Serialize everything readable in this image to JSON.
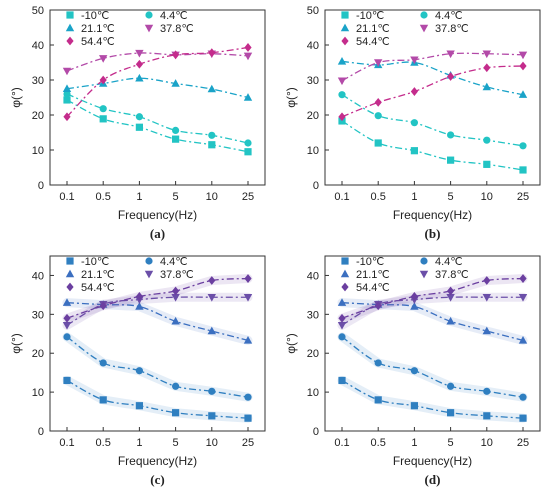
{
  "chart_data": [
    {
      "type": "line",
      "caption": "(a)",
      "xlabel": "Frequency(Hz)",
      "ylabel": "φ(°)",
      "categories": [
        "0.1",
        "0.5",
        "1",
        "5",
        "10",
        "25"
      ],
      "ylim": [
        0,
        50
      ],
      "yticks": [
        0,
        10,
        20,
        30,
        40,
        50
      ],
      "legend_position": "top",
      "series": [
        {
          "name": "-10℃",
          "color": "#22c4c4",
          "marker": "square",
          "values": [
            24.3,
            18.9,
            16.5,
            13.1,
            11.5,
            9.5
          ]
        },
        {
          "name": "4.4℃",
          "color": "#22c4c4",
          "marker": "circle",
          "values": [
            26.0,
            21.8,
            19.5,
            15.6,
            14.2,
            12.0
          ]
        },
        {
          "name": "21.1℃",
          "color": "#1aa3c8",
          "marker": "triangle-up",
          "values": [
            27.5,
            29.0,
            30.5,
            29.0,
            27.4,
            25.0
          ]
        },
        {
          "name": "37.8℃",
          "color": "#b34aa8",
          "marker": "triangle-down",
          "values": [
            32.6,
            36.2,
            37.7,
            37.2,
            37.5,
            36.9
          ]
        },
        {
          "name": "54.4℃",
          "color": "#c42c8c",
          "marker": "diamond",
          "values": [
            19.5,
            30.0,
            34.5,
            37.2,
            37.8,
            39.3
          ]
        }
      ]
    },
    {
      "type": "line",
      "caption": "(b)",
      "xlabel": "Frequency(Hz)",
      "ylabel": "φ(°)",
      "categories": [
        "0.1",
        "0.5",
        "1",
        "5",
        "10",
        "25"
      ],
      "ylim": [
        0,
        50
      ],
      "yticks": [
        0,
        10,
        20,
        30,
        40,
        50
      ],
      "legend_position": "top",
      "series": [
        {
          "name": "-10℃",
          "color": "#22c4c4",
          "marker": "square",
          "values": [
            18.3,
            12.0,
            9.8,
            7.1,
            5.9,
            4.3
          ]
        },
        {
          "name": "4.4℃",
          "color": "#22c4c4",
          "marker": "circle",
          "values": [
            25.8,
            19.8,
            17.8,
            14.3,
            12.8,
            11.2
          ]
        },
        {
          "name": "21.1℃",
          "color": "#1aa3c8",
          "marker": "triangle-up",
          "values": [
            35.3,
            34.3,
            35.0,
            31.3,
            28.0,
            25.8
          ]
        },
        {
          "name": "37.8℃",
          "color": "#b34aa8",
          "marker": "triangle-down",
          "values": [
            29.8,
            35.0,
            35.8,
            37.5,
            37.5,
            37.2
          ]
        },
        {
          "name": "54.4℃",
          "color": "#c42c8c",
          "marker": "diamond",
          "values": [
            19.5,
            23.6,
            26.7,
            31.0,
            33.5,
            34.0
          ]
        }
      ]
    },
    {
      "type": "line",
      "caption": "(c)",
      "xlabel": "Frequency(Hz)",
      "ylabel": "φ(°)",
      "categories": [
        "0.1",
        "0.5",
        "1",
        "5",
        "10",
        "25"
      ],
      "ylim": [
        0,
        45
      ],
      "yticks": [
        0,
        10,
        20,
        30,
        40
      ],
      "legend_position": "top",
      "series": [
        {
          "name": "-10℃",
          "color": "#2f7fc0",
          "marker": "square",
          "values": [
            13.0,
            8.0,
            6.5,
            4.7,
            3.9,
            3.3
          ]
        },
        {
          "name": "4.4℃",
          "color": "#2f7fc0",
          "marker": "circle",
          "values": [
            24.2,
            17.5,
            15.5,
            11.5,
            10.2,
            8.7
          ]
        },
        {
          "name": "21.1℃",
          "color": "#3b6fc0",
          "marker": "triangle-up",
          "values": [
            33.0,
            32.5,
            32.0,
            28.2,
            25.7,
            23.3
          ]
        },
        {
          "name": "37.8℃",
          "color": "#6b4fa8",
          "marker": "triangle-down",
          "values": [
            27.2,
            32.6,
            33.8,
            34.4,
            34.4,
            34.4
          ]
        },
        {
          "name": "54.4℃",
          "color": "#6b3fa0",
          "marker": "diamond",
          "values": [
            29.0,
            32.2,
            34.6,
            36.0,
            38.7,
            39.2
          ]
        }
      ]
    },
    {
      "type": "line",
      "caption": "(d)",
      "xlabel": "Frequency(Hz)",
      "ylabel": "φ(°)",
      "categories": [
        "0.1",
        "0.5",
        "1",
        "5",
        "10",
        "25"
      ],
      "ylim": [
        0,
        45
      ],
      "yticks": [
        0,
        10,
        20,
        30,
        40
      ],
      "legend_position": "top",
      "series": [
        {
          "name": "-10℃",
          "color": "#2f7fc0",
          "marker": "square",
          "values": [
            13.0,
            8.0,
            6.5,
            4.7,
            3.9,
            3.3
          ]
        },
        {
          "name": "4.4℃",
          "color": "#2f7fc0",
          "marker": "circle",
          "values": [
            24.2,
            17.5,
            15.5,
            11.5,
            10.2,
            8.7
          ]
        },
        {
          "name": "21.1℃",
          "color": "#3b6fc0",
          "marker": "triangle-up",
          "values": [
            33.0,
            32.5,
            32.0,
            28.2,
            25.7,
            23.3
          ]
        },
        {
          "name": "37.8℃",
          "color": "#6b4fa8",
          "marker": "triangle-down",
          "values": [
            27.2,
            32.6,
            33.8,
            34.4,
            34.4,
            34.4
          ]
        },
        {
          "name": "54.4℃",
          "color": "#6b3fa0",
          "marker": "diamond",
          "values": [
            29.0,
            32.2,
            34.6,
            36.0,
            38.7,
            39.2
          ]
        }
      ]
    }
  ]
}
